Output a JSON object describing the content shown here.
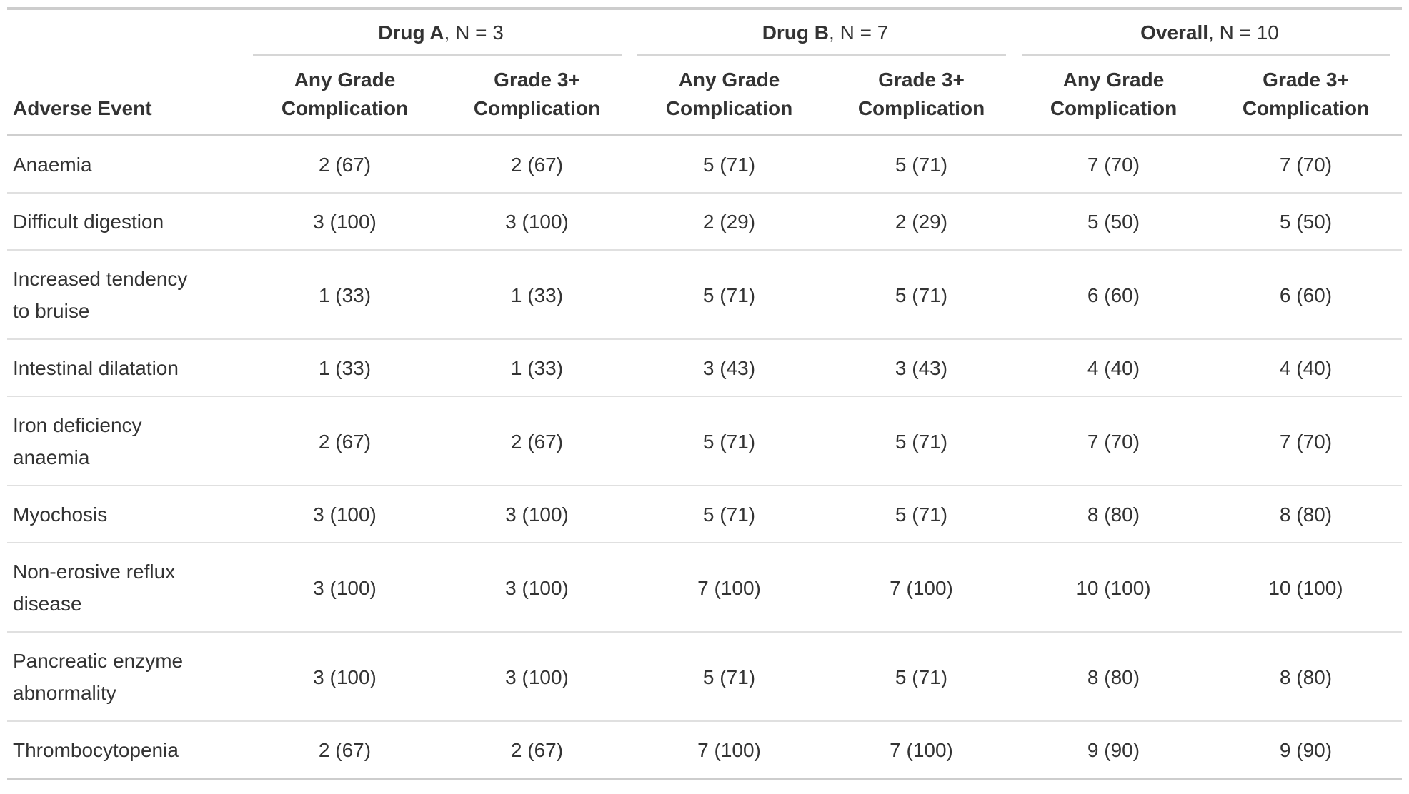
{
  "colors": {
    "background": "#ffffff",
    "text": "#333333",
    "rule_strong": "#cdcdcd",
    "rule_header": "#cfcfcf",
    "rule_row": "#e0e0e0"
  },
  "chart_data": {
    "type": "table",
    "stub_header": "Adverse Event",
    "spanners": [
      {
        "label": "Drug A",
        "n_label": ", N = 3"
      },
      {
        "label": "Drug B",
        "n_label": ", N = 7"
      },
      {
        "label": "Overall",
        "n_label": ", N = 10"
      }
    ],
    "column_headers": [
      "Any Grade Complication",
      "Grade 3+ Complication",
      "Any Grade Complication",
      "Grade 3+ Complication",
      "Any Grade Complication",
      "Grade 3+ Complication"
    ],
    "rows": [
      {
        "label": "Anaemia",
        "values": [
          "2 (67)",
          "2 (67)",
          "5 (71)",
          "5 (71)",
          "7 (70)",
          "7 (70)"
        ]
      },
      {
        "label": "Difficult digestion",
        "values": [
          "3 (100)",
          "3 (100)",
          "2 (29)",
          "2 (29)",
          "5 (50)",
          "5 (50)"
        ]
      },
      {
        "label": "Increased tendency to bruise",
        "values": [
          "1 (33)",
          "1 (33)",
          "5 (71)",
          "5 (71)",
          "6 (60)",
          "6 (60)"
        ]
      },
      {
        "label": "Intestinal dilatation",
        "values": [
          "1 (33)",
          "1 (33)",
          "3 (43)",
          "3 (43)",
          "4 (40)",
          "4 (40)"
        ]
      },
      {
        "label": "Iron deficiency anaemia",
        "values": [
          "2 (67)",
          "2 (67)",
          "5 (71)",
          "5 (71)",
          "7 (70)",
          "7 (70)"
        ]
      },
      {
        "label": "Myochosis",
        "values": [
          "3 (100)",
          "3 (100)",
          "5 (71)",
          "5 (71)",
          "8 (80)",
          "8 (80)"
        ]
      },
      {
        "label": "Non-erosive reflux disease",
        "values": [
          "3 (100)",
          "3 (100)",
          "7 (100)",
          "7 (100)",
          "10 (100)",
          "10 (100)"
        ]
      },
      {
        "label": "Pancreatic enzyme abnormality",
        "values": [
          "3 (100)",
          "3 (100)",
          "5 (71)",
          "5 (71)",
          "8 (80)",
          "8 (80)"
        ]
      },
      {
        "label": "Thrombocytopenia",
        "values": [
          "2 (67)",
          "2 (67)",
          "7 (100)",
          "7 (100)",
          "9 (90)",
          "9 (90)"
        ]
      }
    ]
  }
}
